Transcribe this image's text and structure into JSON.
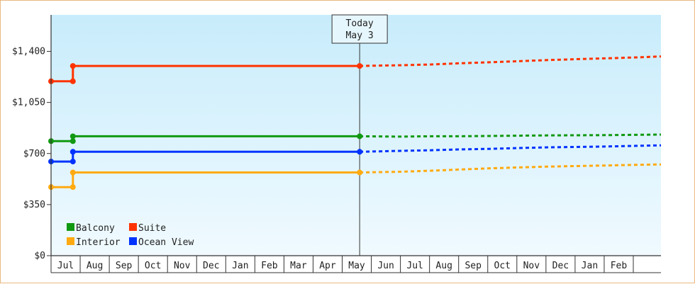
{
  "chart_data": {
    "type": "line",
    "y_axis": {
      "ticks": [
        "$0",
        "$350",
        "$700",
        "$1,050",
        "$1,400"
      ],
      "tick_values": [
        0,
        350,
        700,
        1050,
        1400
      ],
      "range": [
        0,
        1650
      ]
    },
    "x_axis": {
      "months": [
        "Jul",
        "Aug",
        "Sep",
        "Oct",
        "Nov",
        "Dec",
        "Jan",
        "Feb",
        "Mar",
        "Apr",
        "May",
        "Jun",
        "Jul",
        "Aug",
        "Sep",
        "Oct",
        "Nov",
        "Dec",
        "Jan",
        "Feb"
      ],
      "range_months": [
        -0.5,
        20.45
      ]
    },
    "today": {
      "line1": "Today",
      "line2": "May 3",
      "x": 10.1
    },
    "series": [
      {
        "name": "Suite",
        "color": "#ff3300",
        "history": [
          [
            -0.5,
            1195
          ],
          [
            0.25,
            1195
          ],
          [
            0.25,
            1300
          ],
          [
            10.1,
            1300
          ]
        ],
        "history_markers": [
          [
            -0.5,
            1195
          ],
          [
            0.25,
            1195
          ],
          [
            0.25,
            1300
          ],
          [
            10.1,
            1300
          ]
        ],
        "forecast": [
          [
            10.1,
            1300
          ],
          [
            11.5,
            1305
          ],
          [
            12.5,
            1310
          ],
          [
            13.5,
            1318
          ],
          [
            14.5,
            1325
          ],
          [
            15.5,
            1332
          ],
          [
            16.5,
            1340
          ],
          [
            17.5,
            1346
          ],
          [
            18.5,
            1352
          ],
          [
            19.5,
            1358
          ],
          [
            20.45,
            1365
          ]
        ]
      },
      {
        "name": "Balcony",
        "color": "#119911",
        "history": [
          [
            -0.5,
            785
          ],
          [
            0.25,
            785
          ],
          [
            0.25,
            818
          ],
          [
            10.1,
            818
          ]
        ],
        "history_markers": [
          [
            -0.5,
            785
          ],
          [
            0.25,
            785
          ],
          [
            0.25,
            818
          ],
          [
            10.1,
            818
          ]
        ],
        "forecast": [
          [
            10.1,
            818
          ],
          [
            11.5,
            816
          ],
          [
            12.5,
            818
          ],
          [
            13.5,
            818
          ],
          [
            14.5,
            820
          ],
          [
            15.5,
            822
          ],
          [
            16.5,
            824
          ],
          [
            17.5,
            825
          ],
          [
            18.5,
            826
          ],
          [
            19.5,
            828
          ],
          [
            20.45,
            830
          ]
        ]
      },
      {
        "name": "Ocean View",
        "color": "#0033ff",
        "history": [
          [
            -0.5,
            645
          ],
          [
            0.25,
            645
          ],
          [
            0.25,
            712
          ],
          [
            10.1,
            712
          ]
        ],
        "history_markers": [
          [
            -0.5,
            645
          ],
          [
            0.25,
            645
          ],
          [
            0.25,
            712
          ],
          [
            10.1,
            712
          ]
        ],
        "forecast": [
          [
            10.1,
            712
          ],
          [
            11.5,
            718
          ],
          [
            12.5,
            722
          ],
          [
            13.5,
            728
          ],
          [
            14.5,
            732
          ],
          [
            15.5,
            737
          ],
          [
            16.5,
            742
          ],
          [
            17.5,
            745
          ],
          [
            18.5,
            748
          ],
          [
            19.5,
            752
          ],
          [
            20.45,
            756
          ]
        ]
      },
      {
        "name": "Interior",
        "color": "#ffaa11",
        "history": [
          [
            -0.5,
            470
          ],
          [
            0.25,
            470
          ],
          [
            0.25,
            570
          ],
          [
            10.1,
            570
          ]
        ],
        "history_markers": [
          [
            -0.5,
            470
          ],
          [
            0.25,
            470
          ],
          [
            0.25,
            570
          ],
          [
            10.1,
            570
          ]
        ],
        "forecast": [
          [
            10.1,
            570
          ],
          [
            11.5,
            575
          ],
          [
            12.5,
            582
          ],
          [
            13.5,
            590
          ],
          [
            14.5,
            598
          ],
          [
            15.5,
            604
          ],
          [
            16.5,
            610
          ],
          [
            17.5,
            614
          ],
          [
            18.5,
            618
          ],
          [
            19.5,
            622
          ],
          [
            20.45,
            625
          ]
        ]
      }
    ],
    "legend": {
      "placement": "bottom-left",
      "rows": [
        [
          "Balcony",
          "Suite"
        ],
        [
          "Interior",
          "Ocean View"
        ]
      ]
    },
    "background": {
      "gradient_top": "#c8ecfb",
      "gradient_bottom": "#f0faff"
    }
  }
}
